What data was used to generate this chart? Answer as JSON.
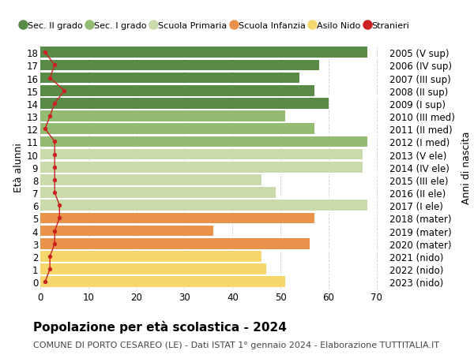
{
  "ages": [
    0,
    1,
    2,
    3,
    4,
    5,
    6,
    7,
    8,
    9,
    10,
    11,
    12,
    13,
    14,
    15,
    16,
    17,
    18
  ],
  "years_labels": [
    "2023 (nido)",
    "2022 (nido)",
    "2021 (nido)",
    "2020 (mater)",
    "2019 (mater)",
    "2018 (mater)",
    "2017 (I ele)",
    "2016 (II ele)",
    "2015 (III ele)",
    "2014 (IV ele)",
    "2013 (V ele)",
    "2012 (I med)",
    "2011 (II med)",
    "2010 (III med)",
    "2009 (I sup)",
    "2008 (II sup)",
    "2007 (III sup)",
    "2006 (IV sup)",
    "2005 (V sup)"
  ],
  "bar_values": [
    51,
    47,
    46,
    56,
    36,
    57,
    68,
    49,
    46,
    67,
    67,
    68,
    57,
    51,
    60,
    57,
    54,
    58,
    68
  ],
  "stranieri_values": [
    1,
    2,
    2,
    3,
    3,
    4,
    4,
    3,
    3,
    3,
    3,
    3,
    1,
    2,
    3,
    5,
    2,
    3,
    1
  ],
  "bar_colors": [
    "#f5d76e",
    "#f5d76e",
    "#f5d76e",
    "#e8924a",
    "#e8924a",
    "#e8924a",
    "#c8dba8",
    "#c8dba8",
    "#c8dba8",
    "#c8dba8",
    "#c8dba8",
    "#93bb72",
    "#93bb72",
    "#93bb72",
    "#5a8a47",
    "#5a8a47",
    "#5a8a47",
    "#5a8a47",
    "#5a8a47"
  ],
  "legend_labels": [
    "Sec. II grado",
    "Sec. I grado",
    "Scuola Primaria",
    "Scuola Infanzia",
    "Asilo Nido",
    "Stranieri"
  ],
  "legend_colors": [
    "#5a8a47",
    "#93bb72",
    "#c8dba8",
    "#e8924a",
    "#f5d76e",
    "#cc2222"
  ],
  "stranieri_color": "#cc2222",
  "title": "Popolazione per età scolastica - 2024",
  "subtitle": "COMUNE DI PORTO CESAREO (LE) - Dati ISTAT 1° gennaio 2024 - Elaborazione TUTTITALIA.IT",
  "ylabel": "Età alunni",
  "ylabel2": "Anni di nascita",
  "xlim": [
    0,
    72
  ],
  "xticks": [
    0,
    10,
    20,
    30,
    40,
    50,
    60,
    70
  ],
  "bg_color": "#ffffff",
  "grid_color": "#cccccc",
  "bar_height": 0.85,
  "title_fontsize": 11,
  "subtitle_fontsize": 8,
  "axis_fontsize": 9,
  "tick_fontsize": 8.5
}
